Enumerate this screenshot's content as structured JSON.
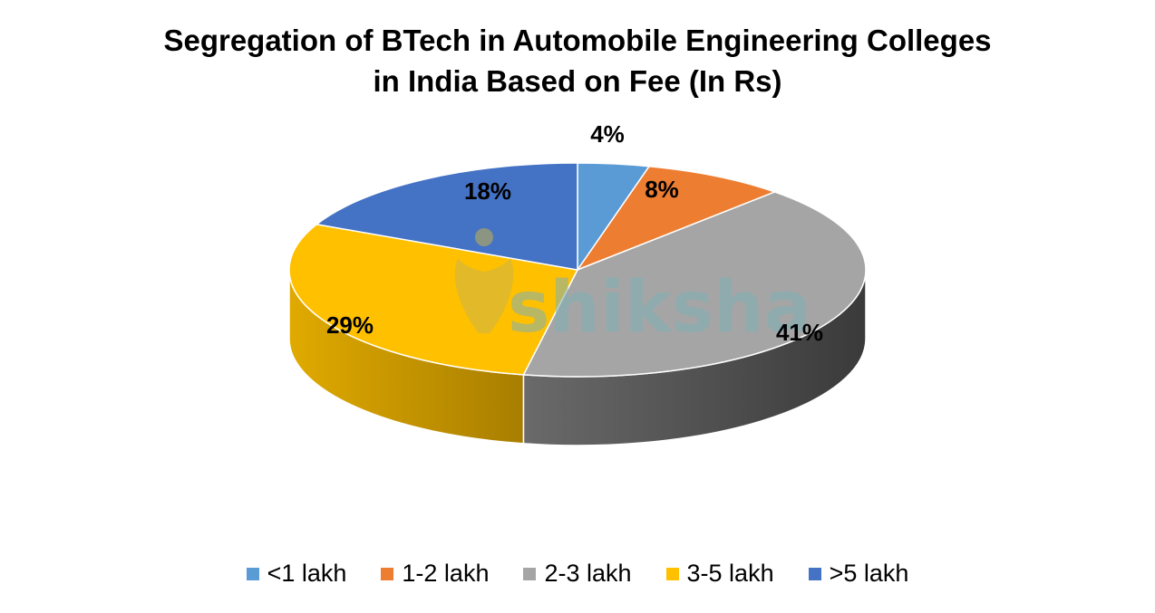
{
  "title": {
    "line1": "Segregation of BTech in Automobile Engineering Colleges",
    "line2": "in India Based on Fee (In Rs)"
  },
  "watermark": "shiksha",
  "legend": [
    {
      "label": "<1 lakh",
      "color": "#5b9bd5"
    },
    {
      "label": "1-2 lakh",
      "color": "#ed7d31"
    },
    {
      "label": "2-3 lakh",
      "color": "#a5a5a5"
    },
    {
      "label": "3-5 lakh",
      "color": "#ffc000"
    },
    {
      "label": ">5 lakh",
      "color": "#4472c4"
    }
  ],
  "chart_data": {
    "type": "pie",
    "variant": "3d",
    "title": "Segregation of BTech in Automobile Engineering Colleges in India Based on Fee (In Rs)",
    "categories": [
      "<1 lakh",
      "1-2 lakh",
      "2-3 lakh",
      "3-5 lakh",
      ">5 lakh"
    ],
    "values": [
      4,
      8,
      41,
      29,
      18
    ],
    "labels": [
      "4%",
      "8%",
      "41%",
      "29%",
      "18%"
    ],
    "colors": [
      "#5b9bd5",
      "#ed7d31",
      "#a5a5a5",
      "#ffc000",
      "#4472c4"
    ],
    "side_colors": [
      "#3f78ad",
      "#b85c1f",
      "#4a4a4a",
      "#c99700",
      "#2f5597"
    ],
    "legend_position": "bottom",
    "start_angle_deg": 0,
    "direction": "clockwise"
  }
}
